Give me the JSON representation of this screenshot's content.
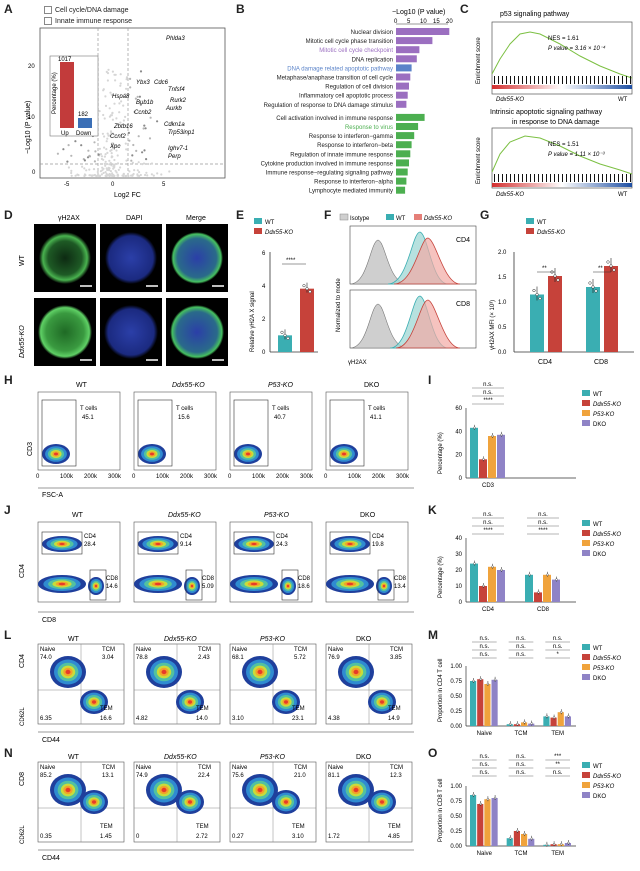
{
  "figure": {
    "labels": [
      "A",
      "B",
      "C",
      "D",
      "E",
      "F",
      "G",
      "H",
      "I",
      "J",
      "K",
      "L",
      "M",
      "N",
      "O"
    ]
  },
  "panelA": {
    "legend": [
      "Cell cycle/DNA damage",
      "Innate immune response"
    ],
    "ylabel": "−Log10 (P value)",
    "xlabel": "Log2 FC",
    "xticks": [
      "-5",
      "0",
      "5"
    ],
    "yticks": [
      "20",
      "10",
      "0"
    ],
    "inset_ylabel": "Percentage (%)",
    "inset_values": [
      "1017",
      "182"
    ],
    "inset_labels": [
      "Up",
      "Down"
    ],
    "genes": [
      "Phlda3",
      "Ybx3",
      "Cdc6",
      "Tnfsf4",
      "Hspa8",
      "Bub1b",
      "Rurk2",
      "Aurkb",
      "Ccnb2",
      "Cdkn1a",
      "Trp53inp1",
      "Zbtb16",
      "Ccnf2",
      "Xpc",
      "Ighv7-1",
      "Perp"
    ]
  },
  "panelB": {
    "axis_title": "−Log10 (P value)",
    "ticks": [
      "0",
      "5",
      "10",
      "15",
      "20"
    ],
    "terms": [
      {
        "name": "Nuclear division",
        "value": 20.5,
        "color": "#9b6fc0"
      },
      {
        "name": "Mitotic cell cycle phase transition",
        "value": 14,
        "color": "#9b6fc0"
      },
      {
        "name": "Mitotic cell cycle checkpoint",
        "value": 9,
        "color": "#9b6fc0"
      },
      {
        "name": "DNA replication",
        "value": 8,
        "color": "#9b6fc0"
      },
      {
        "name": "DNA damage related apoptotic pathway",
        "value": 6,
        "color": "#5a83c9"
      },
      {
        "name": "Metaphase/anaphase transition of cell cycle",
        "value": 5.5,
        "color": "#9b6fc0"
      },
      {
        "name": "Regulation of cell division",
        "value": 5,
        "color": "#9b6fc0"
      },
      {
        "name": "Inflammatory cell apoptotic process",
        "value": 4.5,
        "color": "#9b6fc0"
      },
      {
        "name": "Regulation of response to DNA damage stimulus",
        "value": 4,
        "color": "#9b6fc0"
      },
      {
        "name": "Cell activation involved in immune response",
        "value": 11,
        "color": "#4caf50"
      },
      {
        "name": "Response to virus",
        "value": 8.5,
        "color": "#4caf50"
      },
      {
        "name": "Response to interferon−gamma",
        "value": 7,
        "color": "#4caf50"
      },
      {
        "name": "Response to interferon−beta",
        "value": 6,
        "color": "#4caf50"
      },
      {
        "name": "Regulation of innate immune response",
        "value": 5.5,
        "color": "#4caf50"
      },
      {
        "name": "Cytokine production involved in immune response",
        "value": 5,
        "color": "#4caf50"
      },
      {
        "name": "Immune response−regulating signaling pathway",
        "value": 4.5,
        "color": "#4caf50"
      },
      {
        "name": "Response to interferon−alpha",
        "value": 4,
        "color": "#4caf50"
      },
      {
        "name": "Lymphocyte mediated immunity",
        "value": 3.5,
        "color": "#4caf50"
      }
    ]
  },
  "panelC": {
    "ylabel": "Enrichment score",
    "plots": [
      {
        "title": "p53 signaling pathway",
        "nes": "NES = 1.61",
        "p": "P value = 3.16 × 10⁻⁴",
        "left": "Ddx55-KO",
        "right": "WT"
      },
      {
        "title": "Intrinsic apoptotic signaling pathway in response to DNA damage",
        "nes": "NES = 1.51",
        "p": "P value = 1.11 × 10⁻³",
        "left": "Ddx55-KO",
        "right": "WT"
      }
    ]
  },
  "panelD": {
    "cols": [
      "γH2AX",
      "DAPI",
      "Merge"
    ],
    "rows": [
      "WT",
      "Ddx55-KO"
    ]
  },
  "panelE": {
    "legend": [
      "WT",
      "Ddx55-KO"
    ],
    "ylabel": "Relative γH2A X signal",
    "yticks": [
      "0",
      "2",
      "4",
      "6"
    ],
    "values": [
      1.0,
      3.8
    ],
    "sig": "****"
  },
  "panelF": {
    "legend": [
      "Isotype",
      "WT",
      "Ddx55-KO"
    ],
    "ylabel": "Normalized to mode",
    "xlabel": "γH2AX",
    "rows": [
      "CD4",
      "CD8"
    ]
  },
  "panelG": {
    "legend": [
      "WT",
      "Ddx55-KO"
    ],
    "ylabel": "γH2AX MFI (× 10³)",
    "yticks": [
      "0.0",
      "0.5",
      "1.0",
      "1.5",
      "2.0"
    ],
    "categories": [
      "CD4",
      "CD8"
    ],
    "values": {
      "WT": [
        1.15,
        1.3
      ],
      "KO": [
        1.52,
        1.72
      ]
    },
    "sig": [
      "**",
      "**"
    ]
  },
  "panelH": {
    "groups": [
      "WT",
      "Ddx55-KO",
      "P53-KO",
      "DKO"
    ],
    "gate_label": "T cells",
    "values": [
      "45.1",
      "15.6",
      "40.7",
      "41.1"
    ],
    "ylabel": "CD3",
    "xlabel": "FSC-A",
    "xticks": [
      "0",
      "100k",
      "200k",
      "300k"
    ]
  },
  "panelI": {
    "ylabel": "Percentage (%)",
    "xlabel": "CD3",
    "yticks": [
      "0",
      "20",
      "40",
      "60"
    ],
    "values": [
      43,
      16,
      36,
      37
    ],
    "sig": [
      "n.s.",
      "n.s.",
      "****"
    ],
    "legend": [
      "WT",
      "Ddx55-KO",
      "P53-KO",
      "DKO"
    ]
  },
  "panelJ": {
    "groups": [
      "WT",
      "Ddx55-KO",
      "P53-KO",
      "DKO"
    ],
    "cd4": [
      "28.4",
      "9.14",
      "24.3",
      "19.8"
    ],
    "cd8": [
      "14.6",
      "5.09",
      "18.6",
      "13.4"
    ],
    "ylabel": "CD4",
    "xlabel": "CD8",
    "gate4": "CD4",
    "gate8": "CD8"
  },
  "panelK": {
    "ylabel": "Percentage (%)",
    "yticks": [
      "0",
      "10",
      "20",
      "30",
      "40"
    ],
    "categories": [
      "CD4",
      "CD8"
    ],
    "values": [
      [
        24,
        10,
        22,
        20
      ],
      [
        17,
        6,
        17,
        14
      ]
    ],
    "sig": [
      "n.s.",
      "n.s.",
      "****"
    ],
    "legend": [
      "WT",
      "Ddx55-KO",
      "P53-KO",
      "DKO"
    ]
  },
  "panelL": {
    "groups": [
      "WT",
      "Ddx55-KO",
      "P53-KO",
      "DKO"
    ],
    "naive": [
      "74.0",
      "78.8",
      "68.1",
      "76.9"
    ],
    "tcm": [
      "3.04",
      "2.43",
      "5.72",
      "3.85"
    ],
    "dn": [
      "6.35",
      "4.82",
      "3.10",
      "4.38"
    ],
    "tem": [
      "16.6",
      "14.0",
      "23.1",
      "14.9"
    ],
    "ylabel": "CD4",
    "ylabel2": "CD62L",
    "xlabel": "CD44",
    "naive_label": "Naive",
    "tcm_label": "TCM",
    "tem_label": "TEM"
  },
  "panelM": {
    "ylabel": "Proportion in CD4 T cell",
    "yticks": [
      "0.00",
      "0.25",
      "0.50",
      "0.75",
      "1.00"
    ],
    "categories": [
      "Naive",
      "TCM",
      "TEM"
    ],
    "values": [
      [
        0.75,
        0.78,
        0.7,
        0.77
      ],
      [
        0.03,
        0.03,
        0.06,
        0.04
      ],
      [
        0.16,
        0.14,
        0.23,
        0.16
      ]
    ],
    "sig_rows": [
      [
        "n.s.",
        "n.s.",
        "n.s."
      ],
      [
        "n.s.",
        "n.s.",
        "n.s."
      ],
      [
        "n.s.",
        "n.s.",
        "*"
      ]
    ],
    "legend": [
      "WT",
      "Ddx55-KO",
      "P53-KO",
      "DKO"
    ]
  },
  "panelN": {
    "groups": [
      "WT",
      "Ddx55-KO",
      "P53-KO",
      "DKO"
    ],
    "naive": [
      "85.2",
      "74.9",
      "75.6",
      "81.1"
    ],
    "tcm": [
      "13.1",
      "22.4",
      "21.0",
      "12.3"
    ],
    "dn": [
      "0.35",
      "0",
      "0.27",
      "1.72"
    ],
    "tem": [
      "1.45",
      "2.72",
      "3.10",
      "4.85"
    ],
    "ylabel": "CD8",
    "ylabel2": "CD62L",
    "xlabel": "CD44",
    "naive_label": "Naive",
    "tcm_label": "TCM",
    "tem_label": "TEM"
  },
  "panelO": {
    "ylabel": "Proportion in CD8 T cell",
    "yticks": [
      "0.00",
      "0.25",
      "0.50",
      "0.75",
      "1.00"
    ],
    "categories": [
      "Naive",
      "TCM",
      "TEM"
    ],
    "values": [
      [
        0.85,
        0.7,
        0.78,
        0.8
      ],
      [
        0.13,
        0.25,
        0.2,
        0.12
      ],
      [
        0.02,
        0.03,
        0.03,
        0.05
      ]
    ],
    "sig_rows": [
      [
        "n.s.",
        "n.s.",
        "n.s."
      ],
      [
        "n.s.",
        "n.s.",
        "n.s."
      ],
      [
        "***",
        "**",
        "n.s."
      ]
    ],
    "legend": [
      "WT",
      "Ddx55-KO",
      "P53-KO",
      "DKO"
    ]
  },
  "colors": {
    "wt": "#3aaeb2",
    "ko": "#c6423a",
    "p53": "#f0a33c",
    "dko": "#8f83c6",
    "purple": "#9b6fc0",
    "green": "#4caf50",
    "blue": "#5a83c9"
  }
}
